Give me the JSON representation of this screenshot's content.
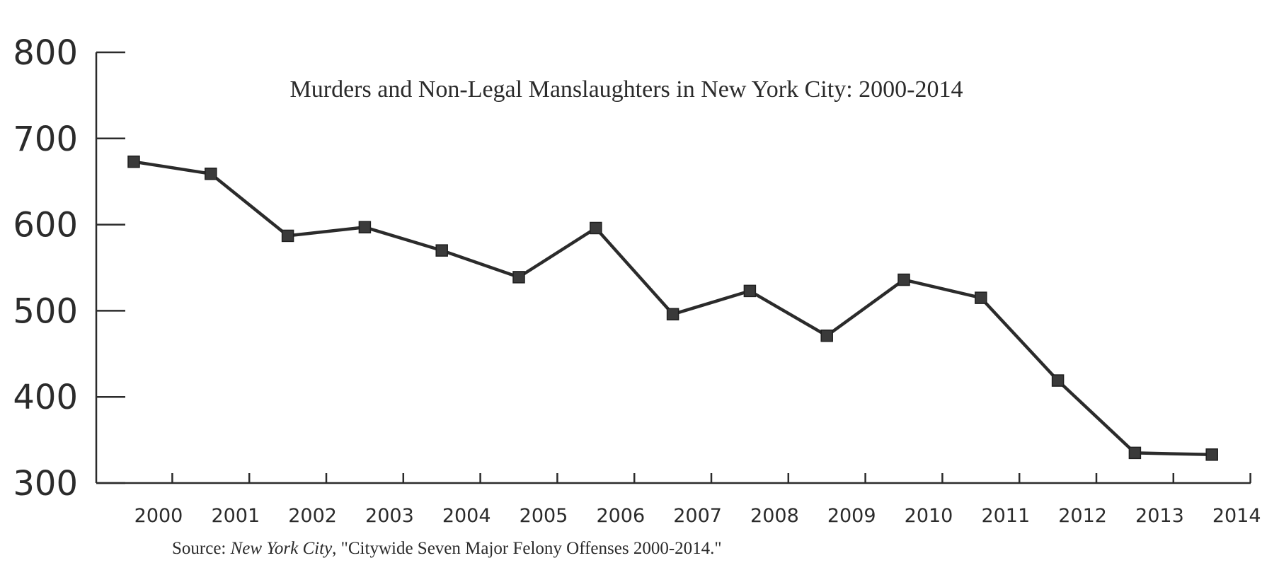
{
  "chart_data": {
    "type": "line",
    "title": "Murders and Non-Legal Manslaughters in New York City: 2000-2014",
    "xlabel": "",
    "ylabel": "",
    "categories": [
      "2000",
      "2001",
      "2002",
      "2003",
      "2004",
      "2005",
      "2006",
      "2007",
      "2008",
      "2009",
      "2010",
      "2011",
      "2012",
      "2013",
      "2014"
    ],
    "series": [
      {
        "values": [
          673,
          659,
          587,
          597,
          570,
          539,
          596,
          496,
          523,
          471,
          536,
          515,
          419,
          335,
          333
        ]
      }
    ],
    "ylim": [
      300,
      800
    ],
    "yticks": [
      "300",
      "400",
      "500",
      "600",
      "700",
      "800"
    ],
    "grid": false,
    "legend": "none",
    "source": {
      "prefix": "Source: ",
      "italic": "New York City",
      "suffix": ", \"Citywide Seven Major Felony Offenses 2000-2014.\""
    },
    "colors": {
      "line": "#2b2b2b",
      "marker": "#3a3a3a"
    }
  }
}
